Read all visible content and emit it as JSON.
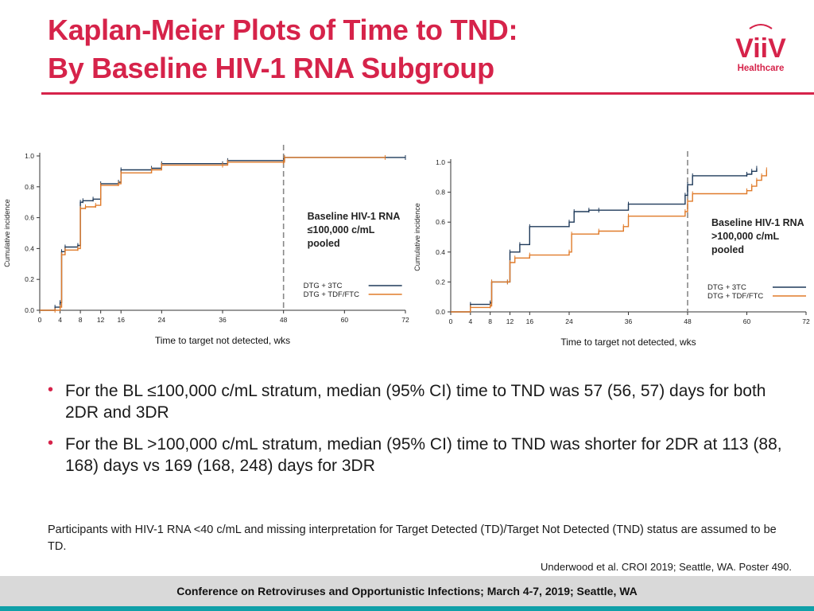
{
  "slide": {
    "title_line1": "Kaplan-Meier Plots of Time to TND:",
    "title_line2": "By Baseline HIV-1 RNA Subgroup",
    "logo": {
      "brand": "ViiV",
      "sub": "Healthcare"
    },
    "bullets": [
      "For the BL ≤100,000 c/mL stratum, median (95% CI) time to TND was 57 (56, 57) days for both 2DR and 3DR",
      "For the BL >100,000 c/mL stratum, median (95% CI) time to TND was shorter for 2DR at 113 (88, 168) days vs 169 (168, 248) days for 3DR"
    ],
    "footnote": "Participants with HIV-1 RNA <40 c/mL and missing interpretation for Target Detected (TD)/Target Not Detected (TND) status are assumed to be TD.",
    "citation": "Underwood et al. CROI 2019; Seattle, WA. Poster 490.",
    "footer": "Conference on Retroviruses and Opportunistic Infections; March 4-7, 2019; Seattle, WA"
  },
  "colors": {
    "accent": "#d6234a",
    "dtg_3tc": "#1f3a5a",
    "dtg_tdf": "#e07b2a",
    "footer_band": "#10a0a8"
  },
  "chart_data": [
    {
      "type": "line",
      "step": true,
      "xlabel": "Time to target not detected, wks",
      "ylabel": "Cumulative incidence",
      "xticks": [
        0,
        4,
        8,
        12,
        16,
        24,
        36,
        48,
        60,
        72
      ],
      "yticks": [
        0.0,
        0.2,
        0.4,
        0.6,
        0.8,
        1.0
      ],
      "xlim": [
        0,
        72
      ],
      "ylim": [
        0,
        1.0
      ],
      "reference_week": 48,
      "annotation": [
        "Baseline HIV-1 RNA",
        "≤100,000 c/mL",
        "pooled"
      ],
      "legend_position": "bottom-right",
      "series": [
        {
          "name": "DTG + 3TC",
          "color": "#1f3a5a",
          "x": [
            0,
            3,
            4,
            4.3,
            5,
            7.5,
            8,
            8.5,
            10.5,
            12,
            15.5,
            16,
            22,
            24,
            36,
            37,
            48,
            48.2,
            72
          ],
          "y": [
            0,
            0.02,
            0.05,
            0.38,
            0.41,
            0.42,
            0.7,
            0.71,
            0.72,
            0.82,
            0.83,
            0.91,
            0.92,
            0.95,
            0.95,
            0.97,
            0.97,
            0.99,
            0.99
          ]
        },
        {
          "name": "DTG + TDF/FTC",
          "color": "#e07b2a",
          "x": [
            0,
            3,
            4,
            4.3,
            5,
            7.5,
            8,
            9,
            11,
            12,
            15.5,
            16,
            22,
            24,
            36,
            37,
            48,
            48.2,
            68
          ],
          "y": [
            0,
            0.0,
            0.02,
            0.36,
            0.39,
            0.4,
            0.66,
            0.67,
            0.68,
            0.81,
            0.82,
            0.89,
            0.91,
            0.94,
            0.94,
            0.96,
            0.96,
            0.99,
            0.99
          ]
        }
      ]
    },
    {
      "type": "line",
      "step": true,
      "xlabel": "Time to target not detected, wks",
      "ylabel": "Cumulative incidence",
      "xticks": [
        0,
        4,
        8,
        12,
        16,
        24,
        36,
        48,
        60,
        72
      ],
      "yticks": [
        0.0,
        0.2,
        0.4,
        0.6,
        0.8,
        1.0
      ],
      "xlim": [
        0,
        72
      ],
      "ylim": [
        0,
        1.0
      ],
      "reference_week": 48,
      "annotation": [
        "Baseline HIV-1 RNA",
        ">100,000 c/mL",
        "pooled"
      ],
      "legend_position": "bottom-right",
      "series": [
        {
          "name": "DTG + 3TC",
          "color": "#1f3a5a",
          "x": [
            0,
            4,
            8,
            8.3,
            11.5,
            12,
            14,
            16,
            24,
            25,
            28,
            30,
            36,
            47.5,
            48,
            49,
            60,
            61,
            62
          ],
          "y": [
            0,
            0.05,
            0.06,
            0.2,
            0.2,
            0.4,
            0.45,
            0.57,
            0.6,
            0.67,
            0.68,
            0.68,
            0.72,
            0.78,
            0.85,
            0.91,
            0.92,
            0.94,
            0.96
          ]
        },
        {
          "name": "DTG + TDF/FTC",
          "color": "#e07b2a",
          "x": [
            0,
            4,
            8,
            8.3,
            11.5,
            12,
            13,
            16,
            24,
            24.5,
            30,
            35,
            36,
            47.5,
            48,
            49,
            60,
            61,
            62,
            63,
            64
          ],
          "y": [
            0,
            0.03,
            0.04,
            0.2,
            0.2,
            0.33,
            0.36,
            0.38,
            0.4,
            0.52,
            0.54,
            0.57,
            0.64,
            0.67,
            0.74,
            0.79,
            0.81,
            0.84,
            0.88,
            0.91,
            0.95
          ]
        }
      ]
    }
  ]
}
